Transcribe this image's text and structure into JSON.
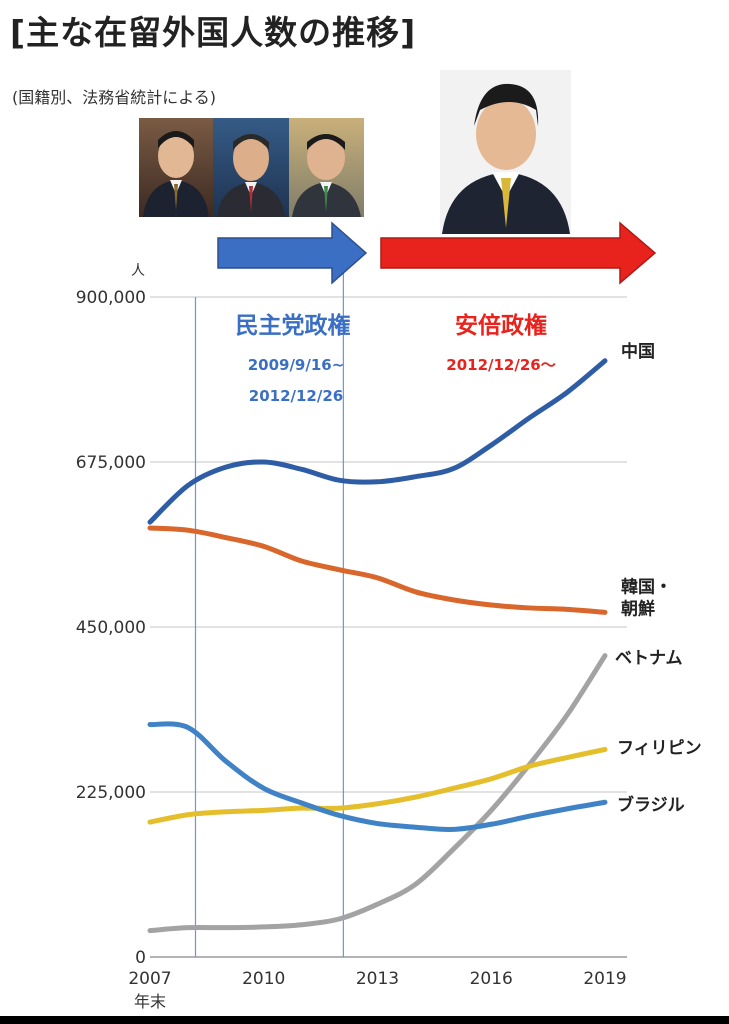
{
  "title": "[主な在留外国人数の推移]",
  "subtitle": "(国籍別、法務省統計による)",
  "colors": {
    "dpj": "#3a6fc4",
    "ldp": "#e8231d",
    "china": "#2e5da6",
    "korea": "#d9662b",
    "vietnam": "#a3a3a3",
    "philippines": "#e5be2c",
    "brazil": "#3f82c6",
    "grid": "#d8d8d8",
    "text": "#333333"
  },
  "photos": [
    {
      "icon": "politician-portrait-1"
    },
    {
      "icon": "politician-portrait-2"
    },
    {
      "icon": "politician-portrait-3"
    },
    {
      "icon": "politician-portrait-abe"
    }
  ],
  "eras": [
    {
      "label": "民主党政権",
      "date1": "2009/9/16~",
      "date2": "2012/12/26",
      "color": "#3a6fc4",
      "start": 2008.2,
      "end": 2012.1
    },
    {
      "label": "安倍政権",
      "date1": "2012/12/26〜",
      "date2": "",
      "color": "#e8231d",
      "start": 2012.1,
      "end": 2019.5
    }
  ],
  "chart_data": {
    "type": "line",
    "yunit": "人",
    "ylim": [
      0,
      900000
    ],
    "yticks": [
      0,
      225000,
      450000,
      675000,
      900000
    ],
    "ytick_labels": [
      "0",
      "225,000",
      "450,000",
      "675,000",
      "900,000"
    ],
    "xlim": [
      2007,
      2019
    ],
    "xticks": [
      2007,
      2010,
      2013,
      2016,
      2019
    ],
    "xtick_labels": [
      "2007",
      "2010",
      "2013",
      "2016",
      "2019"
    ],
    "xlabel": "年末",
    "grid": true,
    "x": [
      2007,
      2008,
      2009,
      2010,
      2011,
      2012,
      2013,
      2014,
      2015,
      2016,
      2017,
      2018,
      2019
    ],
    "series": [
      {
        "name": "中国",
        "color": "#2e5da6",
        "values": [
          593000,
          643000,
          668000,
          675000,
          665000,
          650000,
          648000,
          655000,
          666000,
          698000,
          735000,
          770000,
          813000
        ]
      },
      {
        "name": "韓国・朝鮮",
        "color": "#d9662b",
        "values": [
          585000,
          582000,
          572000,
          560000,
          540000,
          528000,
          517000,
          498000,
          487000,
          480000,
          476000,
          474000,
          470000
        ]
      },
      {
        "name": "ベトナム",
        "color": "#a3a3a3",
        "values": [
          36000,
          40000,
          40000,
          41000,
          44000,
          52000,
          72000,
          99000,
          147000,
          200000,
          262000,
          330000,
          411000
        ]
      },
      {
        "name": "フィリピン",
        "color": "#e5be2c",
        "values": [
          184000,
          194000,
          198000,
          200000,
          203000,
          203000,
          209000,
          218000,
          230000,
          243000,
          260000,
          272000,
          283000
        ]
      },
      {
        "name": "ブラジル",
        "color": "#3f82c6",
        "values": [
          317000,
          313000,
          267000,
          230000,
          210000,
          193000,
          182000,
          177000,
          174000,
          181000,
          192000,
          202000,
          211000
        ]
      }
    ]
  }
}
